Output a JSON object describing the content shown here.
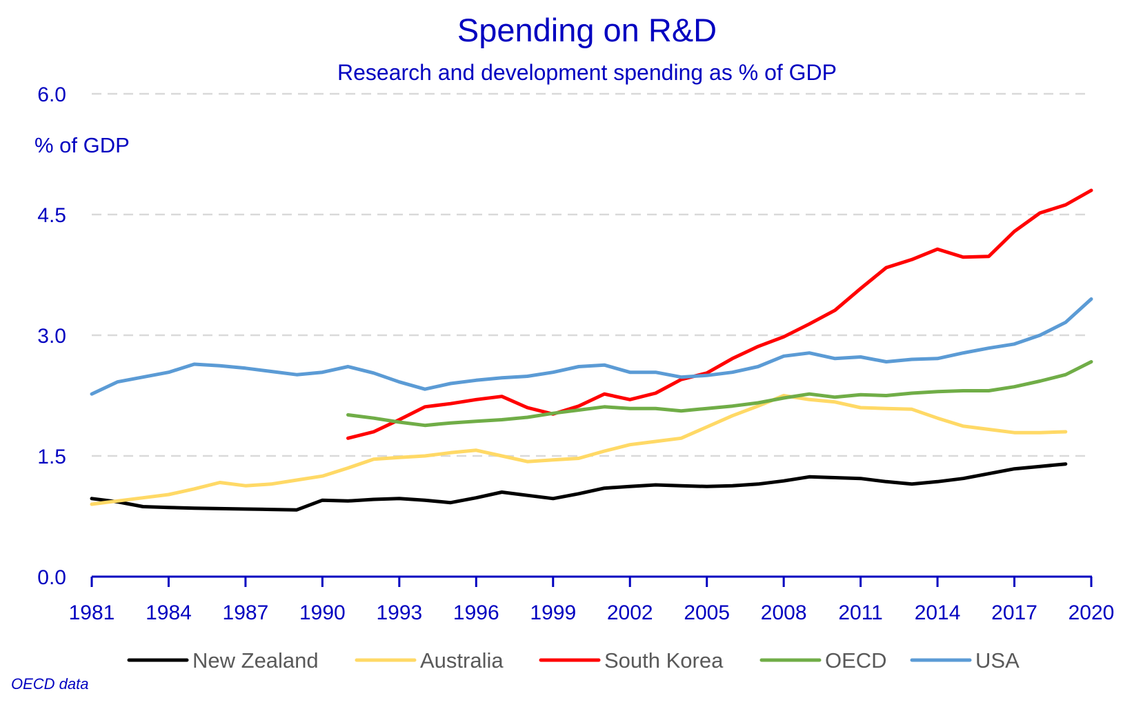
{
  "chart_data": {
    "type": "line",
    "title": "Spending on R&D",
    "subtitle": "Research and development spending as % of GDP",
    "ylabel": "% of GDP",
    "xlabel": "",
    "source_note": "OECD data",
    "xlim": [
      1981,
      2020
    ],
    "ylim": [
      0,
      6
    ],
    "yticks": [
      0,
      1.5,
      3,
      4.5,
      6
    ],
    "ytick_labels": [
      "0.0",
      "1.5",
      "3.0",
      "4.5",
      "6.0"
    ],
    "xticks": [
      1981,
      1984,
      1987,
      1990,
      1993,
      1996,
      1999,
      2002,
      2005,
      2008,
      2011,
      2014,
      2017,
      2020
    ],
    "xtick_labels": [
      "1981",
      "1984",
      "1987",
      "1990",
      "1993",
      "1996",
      "1999",
      "2002",
      "2005",
      "2008",
      "2011",
      "2014",
      "2017",
      "2020"
    ],
    "grid": "horizontal dashed",
    "legend_position": "bottom",
    "series": [
      {
        "name": "New Zealand",
        "color": "#000000",
        "start": 1981,
        "values": [
          0.97,
          0.93,
          0.87,
          0.86,
          0.85,
          0.845,
          0.84,
          0.835,
          0.83,
          0.95,
          0.94,
          0.96,
          0.97,
          0.95,
          0.92,
          0.98,
          1.05,
          1.01,
          0.97,
          1.03,
          1.1,
          1.12,
          1.14,
          1.13,
          1.12,
          1.13,
          1.15,
          1.19,
          1.24,
          1.23,
          1.22,
          1.18,
          1.15,
          1.18,
          1.22,
          1.28,
          1.34,
          1.37,
          1.4
        ]
      },
      {
        "name": "Australia",
        "color": "#ffd966",
        "start": 1981,
        "values": [
          0.9,
          0.94,
          0.98,
          1.02,
          1.09,
          1.17,
          1.13,
          1.15,
          1.2,
          1.25,
          1.35,
          1.46,
          1.48,
          1.5,
          1.54,
          1.57,
          1.5,
          1.43,
          1.45,
          1.47,
          1.56,
          1.64,
          1.68,
          1.72,
          1.86,
          2.0,
          2.12,
          2.25,
          2.2,
          2.17,
          2.1,
          2.09,
          2.08,
          1.97,
          1.87,
          1.83,
          1.79,
          1.79,
          1.8
        ]
      },
      {
        "name": "South Korea",
        "color": "#ff0000",
        "start": 1991,
        "values": [
          1.72,
          1.8,
          1.95,
          2.11,
          2.15,
          2.2,
          2.24,
          2.1,
          2.02,
          2.12,
          2.27,
          2.2,
          2.28,
          2.45,
          2.53,
          2.71,
          2.86,
          2.98,
          3.14,
          3.31,
          3.58,
          3.84,
          3.94,
          4.07,
          3.97,
          3.98,
          4.29,
          4.52,
          4.62,
          4.8
        ]
      },
      {
        "name": "OECD",
        "color": "#70ad47",
        "start": 1991,
        "values": [
          2.01,
          1.97,
          1.92,
          1.88,
          1.91,
          1.93,
          1.95,
          1.98,
          2.03,
          2.07,
          2.11,
          2.09,
          2.09,
          2.06,
          2.09,
          2.12,
          2.16,
          2.22,
          2.27,
          2.23,
          2.26,
          2.25,
          2.28,
          2.3,
          2.31,
          2.31,
          2.36,
          2.43,
          2.51,
          2.67
        ]
      },
      {
        "name": "USA",
        "color": "#5b9bd5",
        "start": 1981,
        "values": [
          2.27,
          2.42,
          2.48,
          2.54,
          2.64,
          2.62,
          2.59,
          2.55,
          2.51,
          2.54,
          2.61,
          2.53,
          2.42,
          2.33,
          2.4,
          2.44,
          2.47,
          2.49,
          2.54,
          2.61,
          2.63,
          2.54,
          2.54,
          2.48,
          2.5,
          2.54,
          2.61,
          2.74,
          2.78,
          2.71,
          2.73,
          2.67,
          2.7,
          2.71,
          2.78,
          2.84,
          2.89,
          3.0,
          3.16,
          3.45
        ]
      }
    ]
  },
  "colors": {
    "text": "#0000c0",
    "legend_text": "#595959",
    "grid": "#d9d9d9"
  }
}
